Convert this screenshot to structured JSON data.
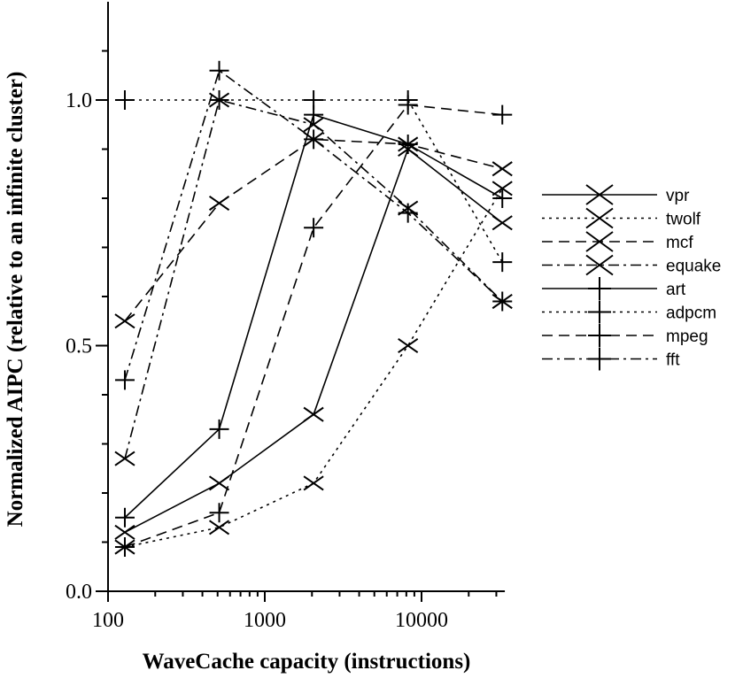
{
  "chart_data": {
    "type": "line",
    "title": "",
    "xlabel": "WaveCache capacity (instructions)",
    "ylabel": "Normalized AIPC (relative to an infinite cluster)",
    "xscale": "log",
    "xlim": [
      100,
      34000
    ],
    "ylim": [
      0,
      1.2
    ],
    "xticks": [
      {
        "v": 100,
        "label": "100"
      },
      {
        "v": 1000,
        "label": "1000"
      },
      {
        "v": 10000,
        "label": "10000"
      }
    ],
    "yticks": [
      {
        "v": 0,
        "label": "0.0"
      },
      {
        "v": 0.5,
        "label": "0.5"
      },
      {
        "v": 1.0,
        "label": "1.0"
      }
    ],
    "grid": false,
    "legend_placement": "right",
    "x": [
      128,
      512,
      2048,
      8192,
      32768
    ],
    "series": [
      {
        "name": "vpr",
        "line": "solid",
        "marker": "x",
        "values": [
          0.12,
          0.22,
          0.36,
          0.9,
          0.75
        ]
      },
      {
        "name": "twolf",
        "line": "dotted",
        "marker": "x",
        "values": [
          0.09,
          0.13,
          0.22,
          0.5,
          0.82
        ]
      },
      {
        "name": "mcf",
        "line": "dashed",
        "marker": "x",
        "values": [
          0.55,
          0.79,
          0.92,
          0.91,
          0.86
        ]
      },
      {
        "name": "equake",
        "line": "dashdot",
        "marker": "x",
        "values": [
          0.27,
          1.0,
          0.95,
          0.78,
          0.59
        ]
      },
      {
        "name": "art",
        "line": "solid",
        "marker": "plus",
        "values": [
          0.15,
          0.33,
          0.97,
          0.91,
          0.8
        ]
      },
      {
        "name": "adpcm",
        "line": "dotted",
        "marker": "plus",
        "values": [
          1.0,
          1.0,
          1.0,
          1.0,
          0.67
        ]
      },
      {
        "name": "mpeg",
        "line": "dashed",
        "marker": "plus",
        "values": [
          0.09,
          0.16,
          0.74,
          0.99,
          0.97
        ]
      },
      {
        "name": "fft",
        "line": "dashdot",
        "marker": "plus",
        "values": [
          0.43,
          1.06,
          0.92,
          0.77,
          0.59
        ]
      }
    ]
  }
}
